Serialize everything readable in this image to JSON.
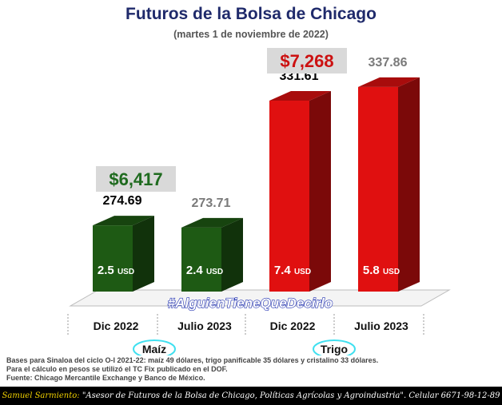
{
  "title": "Futuros de la Bolsa de Chicago",
  "subtitle": "(martes 1 de noviembre de 2022)",
  "chart_data": {
    "type": "bar",
    "categories": [
      "Dic 2022",
      "Julio 2023",
      "Dic 2022",
      "Julio 2023"
    ],
    "groups": [
      "Maíz",
      "Trigo"
    ],
    "values": [
      274.69,
      273.71,
      331.61,
      337.86
    ],
    "bar_labels": [
      "2.5 USD",
      "2.4 USD",
      "7.4 USD",
      "5.8 USD"
    ],
    "colors": [
      "#1e5a14",
      "#1e5a14",
      "#e01010",
      "#e01010"
    ],
    "value_colors": [
      "#000000",
      "#7a7a7a",
      "#000000",
      "#7a7a7a"
    ],
    "callouts": [
      {
        "group": "Maíz",
        "text": "$6,417",
        "color": "#1f6b1f"
      },
      {
        "group": "Trigo",
        "text": "$7,268",
        "color": "#cc1111"
      }
    ],
    "watermark": "#AlguienTieneQueDecirlo"
  },
  "notes": [
    "Bases para Sinaloa del ciclo O-I 2021-22: maíz 49 dólares, trigo panificable 35 dólares y cristalino 33 dólares.",
    "Para el cálculo en pesos se utilizó el TC Fix publicado en el DOF.",
    "Fuente: Chicago Mercantile Exchange y Banco de México."
  ],
  "footer": {
    "name": "Samuel Sarmiento:",
    "text": "\"Asesor de Futuros de la Bolsa de Chicago, Políticas Agrícolas y Agroindustria\". Celular 6671-98-12-89"
  }
}
